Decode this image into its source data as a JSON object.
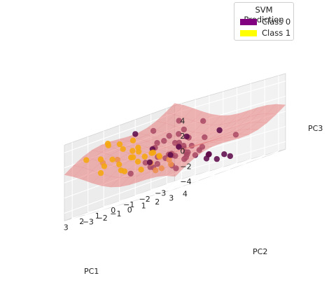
{
  "chart_data": {
    "type": "scatter",
    "title": "",
    "xlabel": "PC1",
    "ylabel": "PC2",
    "zlabel": "PC3",
    "x_ticks": [
      3,
      2,
      1,
      0,
      -1,
      -2,
      -3
    ],
    "y_ticks": [
      -3,
      -2,
      -1,
      0,
      1,
      2,
      3,
      4
    ],
    "z_ticks": [
      4,
      2,
      0,
      -2,
      -4
    ],
    "xlim": [
      -3.5,
      3.5
    ],
    "ylim": [
      -3.5,
      4.5
    ],
    "zlim": [
      -5,
      5
    ],
    "grid": true,
    "legend": {
      "title": "SVM Prediction",
      "placement": "top-right",
      "entries": [
        {
          "label": "Class 0",
          "color": "#800080"
        },
        {
          "label": "Class 1",
          "color": "#ffff00"
        }
      ]
    },
    "surface_color": "#e87e7e",
    "series": [
      {
        "name": "Class 0",
        "color": "#5e0a4a",
        "points": [
          [
            -3.3,
            -2.6,
            1.5
          ],
          [
            -2.7,
            -2.3,
            1.2
          ],
          [
            -2.3,
            -2.9,
            0.9
          ],
          [
            -2.9,
            -1.8,
            0.3
          ],
          [
            -2.1,
            -2.3,
            1.4
          ],
          [
            -1.6,
            -2.6,
            1.0
          ],
          [
            -3.0,
            -2.9,
            0.1
          ],
          [
            -2.4,
            -1.6,
            -0.5
          ],
          [
            -1.9,
            -1.4,
            -0.3
          ],
          [
            -2.3,
            -0.9,
            -0.8
          ],
          [
            -1.7,
            -0.8,
            -0.6
          ],
          [
            -1.1,
            -1.2,
            -0.9
          ],
          [
            -0.8,
            -0.6,
            -1.1
          ],
          [
            -1.4,
            -0.3,
            -1.3
          ],
          [
            -0.5,
            -0.3,
            -0.8
          ],
          [
            -0.2,
            0.3,
            -1.2
          ],
          [
            -1.9,
            0.1,
            -1.6
          ],
          [
            -1.2,
            0.6,
            -2.0
          ],
          [
            -0.5,
            0.8,
            -1.5
          ],
          [
            -1.9,
            0.8,
            -2.5
          ],
          [
            -2.2,
            -1.2,
            -2.1
          ],
          [
            -1.0,
            -1.9,
            -1.7
          ],
          [
            -0.3,
            -1.4,
            -1.9
          ],
          [
            -2.7,
            -0.6,
            -1.4
          ],
          [
            -0.6,
            0.1,
            -0.2
          ],
          [
            0.3,
            -0.4,
            -0.6
          ],
          [
            0.6,
            0.5,
            -1.0
          ],
          [
            -1.3,
            1.3,
            -2.9
          ],
          [
            -2.6,
            1.1,
            -3.2
          ],
          [
            -0.9,
            1.9,
            -2.4
          ],
          [
            0.2,
            1.4,
            -1.9
          ],
          [
            -2.1,
            2.1,
            -3.6
          ],
          [
            0.9,
            -0.6,
            -0.8
          ],
          [
            1.3,
            0.2,
            -1.5
          ],
          [
            0.8,
            1.2,
            -2.2
          ],
          [
            -1.5,
            -0.9,
            0.2
          ],
          [
            -1.2,
            -2.3,
            0.5
          ],
          [
            -2.5,
            -0.2,
            -0.2
          ],
          [
            -0.9,
            2.5,
            -3.3
          ],
          [
            1.6,
            2.4,
            -2.6
          ],
          [
            -1.8,
            -3.1,
            2.7
          ],
          [
            -3.2,
            -1.1,
            1.9
          ],
          [
            0.1,
            -1.0,
            0.6
          ],
          [
            2.3,
            1.3,
            -0.7
          ],
          [
            -2.9,
            1.6,
            -1.1
          ],
          [
            0.5,
            2.0,
            -1.1
          ],
          [
            -1.6,
            1.9,
            0.3
          ],
          [
            -0.3,
            -2.7,
            3.2
          ],
          [
            3.1,
            3.7,
            -0.4
          ],
          [
            -3.6,
            -3.3,
            2.8
          ],
          [
            1.4,
            -1.1,
            -1.6
          ],
          [
            -1.1,
            0.1,
            0.8
          ]
        ]
      },
      {
        "name": "Class 1",
        "color": "#f5a70f",
        "points": [
          [
            2.6,
            -1.9,
            1.6
          ],
          [
            2.2,
            -2.2,
            1.0
          ],
          [
            2.9,
            -1.3,
            0.6
          ],
          [
            1.8,
            -1.6,
            0.8
          ],
          [
            2.4,
            -0.8,
            0.2
          ],
          [
            1.6,
            -0.7,
            0.5
          ],
          [
            2.8,
            -0.2,
            -0.6
          ],
          [
            2.0,
            0.1,
            -0.2
          ],
          [
            1.3,
            -0.2,
            0.1
          ],
          [
            1.7,
            0.7,
            -0.9
          ],
          [
            2.5,
            0.9,
            -1.3
          ],
          [
            1.0,
            0.5,
            -0.4
          ],
          [
            0.8,
            -1.2,
            0.9
          ],
          [
            1.1,
            -2.0,
            1.9
          ],
          [
            0.4,
            -1.7,
            1.4
          ],
          [
            2.9,
            -2.6,
            2.1
          ],
          [
            3.3,
            -1.1,
            -0.1
          ],
          [
            2.2,
            1.6,
            -2.0
          ],
          [
            0.9,
            1.1,
            -1.3
          ],
          [
            1.4,
            1.8,
            -1.9
          ],
          [
            0.6,
            -0.5,
            0.2
          ],
          [
            2.1,
            -1.1,
            2.8
          ],
          [
            3.0,
            -0.6,
            1.2
          ],
          [
            1.5,
            -2.6,
            3.0
          ],
          [
            2.7,
            0.4,
            0.7
          ],
          [
            1.9,
            -0.4,
            1.4
          ],
          [
            0.2,
            -2.3,
            2.5
          ],
          [
            3.2,
            0.5,
            -0.8
          ],
          [
            1.2,
            0.9,
            -2.1
          ],
          [
            2.5,
            -1.5,
            3.4
          ],
          [
            0.7,
            0.2,
            -0.6
          ],
          [
            1.9,
            1.1,
            0.4
          ]
        ]
      }
    ]
  }
}
